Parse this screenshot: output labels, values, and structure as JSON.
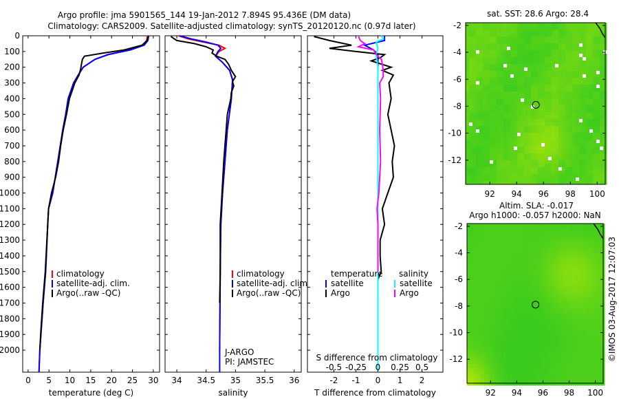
{
  "chart_data": {
    "type": "line",
    "title": "Argo profile: jma 5901565_144 19-Jan-2012 7.894S 95.436E (DM data)",
    "subtitle": "Climatology: CARS2009. Satellite-adjusted climatology: synTS_20120120.nc (0.97d later)",
    "depth_ticks": [
      "0",
      "100",
      "200",
      "300",
      "400",
      "500",
      "600",
      "700",
      "800",
      "900",
      "1000",
      "1100",
      "1200",
      "1300",
      "1400",
      "1500",
      "1600",
      "1700",
      "1800",
      "1900",
      "2000"
    ],
    "depth_range": [
      0,
      2140
    ],
    "panels": [
      {
        "id": "temperature",
        "xlabel": "temperature (deg C)",
        "xlim": [
          -1.3,
          31.5
        ],
        "xticks": [
          0,
          5,
          10,
          15,
          20,
          25,
          30
        ],
        "xtick_labels": [
          "0",
          "5",
          "10",
          "15",
          "20",
          "25",
          "30"
        ],
        "legend": [
          "climatology",
          "satellite-adj. clim.",
          "Argo(..raw -QC)"
        ],
        "legend_colors": [
          "#ff0000",
          "#0000ff",
          "#000000"
        ],
        "series": [
          {
            "name": "climatology",
            "color": "#ff0000",
            "depth": [
              0,
              30,
              60,
              90,
              120,
              150,
              200,
              250,
              300,
              400,
              500,
              600,
              700,
              800,
              1000,
              1100,
              1200,
              1500,
              1700,
              2000,
              2140
            ],
            "values": [
              28.6,
              28.4,
              27.5,
              24,
              19,
              16,
              13.2,
              12,
              10.9,
              9.6,
              9.0,
              8.3,
              7.7,
              7.1,
              5.9,
              4.9,
              4.7,
              4.2,
              3.6,
              2.8,
              2.6
            ]
          },
          {
            "name": "satellite-adj. clim.",
            "color": "#0000ff",
            "depth": [
              0,
              30,
              60,
              90,
              120,
              150,
              200,
              250,
              300,
              400,
              500,
              600,
              700,
              800,
              1000,
              1100,
              1200,
              1500,
              1700,
              2000,
              2140
            ],
            "values": [
              28.9,
              28.7,
              27.8,
              24.5,
              19.2,
              16,
              13.2,
              12,
              10.9,
              9.6,
              9.0,
              8.3,
              7.7,
              7.1,
              5.9,
              4.9,
              4.7,
              4.2,
              3.6,
              2.8,
              2.6
            ]
          },
          {
            "name": "Argo(..raw -QC)",
            "color": "#000000",
            "depth": [
              5,
              30,
              60,
              90,
              110,
              130,
              150,
              180,
              210,
              250,
              300,
              400,
              500,
              600,
              700,
              800,
              900,
              1000,
              1100,
              1200,
              1500,
              1700,
              1900,
              2000
            ],
            "values": [
              28.8,
              28.5,
              27.3,
              23,
              18,
              13.5,
              13.0,
              12.8,
              12.6,
              12.2,
              11.2,
              9.9,
              9.2,
              8.4,
              7.8,
              7.3,
              6.6,
              5.6,
              4.9,
              4.7,
              4.1,
              3.5,
              3.0,
              2.8
            ]
          }
        ]
      },
      {
        "id": "salinity",
        "xlabel": "salinity",
        "xlim": [
          33.8,
          36.12
        ],
        "xticks": [
          34,
          34.5,
          35,
          35.5,
          36
        ],
        "xtick_labels": [
          "34",
          "34.5",
          "35",
          "35.5",
          "36"
        ],
        "legend": [
          "climatology",
          "satellite-adj. clim.",
          "Argo(..raw -QC)"
        ],
        "legend_colors": [
          "#ff0000",
          "#0000ff",
          "#000000"
        ],
        "annotation": [
          "J-ARGO",
          "PI: JAMSTEC"
        ],
        "series": [
          {
            "name": "climatology",
            "color": "#ff0000",
            "depth": [
              0,
              20,
              40,
              60,
              80,
              100,
              130,
              170,
              220,
              280,
              400,
              600,
              800,
              1000,
              1200,
              1500,
              2000
            ],
            "values": [
              34.03,
              34.2,
              34.45,
              34.72,
              34.82,
              34.72,
              34.66,
              34.78,
              34.9,
              34.95,
              34.93,
              34.86,
              34.82,
              34.78,
              34.75,
              34.74,
              34.73
            ]
          },
          {
            "name": "satellite-adj. clim.",
            "color": "#0000ff",
            "depth": [
              0,
              20,
              40,
              60,
              80,
              100,
              130,
              170,
              220,
              280,
              400,
              600,
              800,
              1000,
              1200,
              1500,
              2000,
              2140
            ],
            "values": [
              34.05,
              34.25,
              34.5,
              34.7,
              34.75,
              34.7,
              34.66,
              34.78,
              34.9,
              34.95,
              34.93,
              34.86,
              34.82,
              34.78,
              34.75,
              34.74,
              34.73,
              34.73
            ]
          },
          {
            "name": "Argo(..raw -QC)",
            "color": "#000000",
            "depth": [
              5,
              30,
              50,
              70,
              90,
              110,
              130,
              150,
              180,
              220,
              260,
              290,
              320,
              360,
              400,
              500,
              600,
              800,
              1000,
              1200,
              1500,
              1700
            ],
            "values": [
              33.9,
              34.0,
              34.3,
              34.5,
              34.62,
              34.6,
              34.68,
              34.82,
              34.88,
              34.93,
              35.0,
              34.95,
              34.97,
              34.93,
              34.92,
              34.86,
              34.84,
              34.8,
              34.77,
              34.74,
              34.74,
              34.73
            ]
          }
        ]
      },
      {
        "id": "difference",
        "xlabel": "T difference from climatology",
        "xlabel_top": "S difference from climatology",
        "xlim": [
          -3.2,
          2.95
        ],
        "xticks": [
          -2,
          -1,
          0,
          1,
          2
        ],
        "xtick_labels": [
          "-2",
          "-1",
          "0",
          "1",
          "2"
        ],
        "s_xticks": [
          -0.5,
          -0.25,
          0,
          0.25,
          0.5
        ],
        "s_xtick_labels": [
          "-0.5",
          "-0.25",
          "0",
          "0.25",
          "0.5"
        ],
        "legend_temperature_title": "temperature",
        "legend_salinity_title": "salinity",
        "legend_temperature": [
          "satellite",
          "Argo"
        ],
        "legend_temperature_colors": [
          "#0000ff",
          "#000000"
        ],
        "legend_salinity": [
          "satellite",
          "Argo"
        ],
        "legend_salinity_colors": [
          "#00ffff",
          "#ff00ff"
        ],
        "series": [
          {
            "name": "T satellite",
            "color": "#0000ff",
            "depth": [
              0,
              30,
              60,
              90,
              120,
              200,
              400,
              1000,
              2000,
              2140
            ],
            "values": [
              0.3,
              0.3,
              -0.6,
              -0.2,
              0,
              0,
              0,
              0,
              0,
              0
            ]
          },
          {
            "name": "T Argo",
            "color": "#000000",
            "depth": [
              5,
              30,
              60,
              80,
              100,
              120,
              140,
              160,
              200,
              220,
              250,
              300,
              400,
              500,
              600,
              700,
              800,
              900,
              1000,
              1100,
              1200,
              1300,
              1400,
              1500,
              1550
            ],
            "values": [
              -2.9,
              -2.2,
              -1.2,
              -2.2,
              -1.0,
              0.3,
              0.1,
              -0.3,
              0.6,
              0.2,
              0.7,
              0.5,
              0.6,
              0.45,
              0.6,
              0.75,
              0.65,
              0.7,
              0.45,
              0.2,
              0.3,
              0.1,
              0.1,
              0.15,
              0.0
            ]
          },
          {
            "name": "S satellite",
            "color": "#00ffff",
            "depth": [
              0,
              20,
              40,
              80,
              120,
              200,
              500,
              1000,
              2000,
              2140
            ],
            "values": [
              0.04,
              0.06,
              -0.02,
              0.0,
              -0.02,
              0.0,
              0.0,
              0.0,
              0.0,
              0.0
            ]
          },
          {
            "name": "S Argo",
            "color": "#ff00ff",
            "depth": [
              5,
              30,
              50,
              70,
              90,
              110,
              130,
              150,
              180,
              220,
              260,
              300,
              400,
              600,
              800,
              1000,
              1100,
              1200,
              1500
            ],
            "values": [
              -0.22,
              -0.2,
              -0.15,
              -0.22,
              -0.05,
              -0.03,
              0.0,
              0.04,
              0.05,
              0.06,
              0.06,
              0.02,
              0.03,
              0.02,
              0.03,
              0.01,
              -0.01,
              0.0,
              0.0
            ]
          }
        ]
      }
    ],
    "maps": [
      {
        "id": "sst",
        "title_lines": [
          "sat. SST: 28.6 Argo: 28.4"
        ],
        "lon_range": [
          90.2,
          100.6
        ],
        "lat_range": [
          -13.8,
          -1.8
        ],
        "xtick_labels": [
          "92",
          "94",
          "96",
          "98",
          "100"
        ],
        "ytick_labels": [
          "-2",
          "-4",
          "-6",
          "-8",
          "-10",
          "-12"
        ],
        "profile_location": [
          95.436,
          -7.894
        ]
      },
      {
        "id": "sla",
        "title_lines": [
          "Altim. SLA: -0.017",
          "Argo h1000: -0.057 h2000: NaN"
        ],
        "lon_range": [
          90.2,
          100.6
        ],
        "lat_range": [
          -13.8,
          -1.8
        ],
        "xtick_labels": [
          "92",
          "94",
          "96",
          "98",
          "100"
        ],
        "ytick_labels": [
          "-2",
          "-4",
          "-6",
          "-8",
          "-10",
          "-12"
        ],
        "profile_location": [
          95.436,
          -7.894
        ]
      }
    ],
    "credit": "©IMOS 03-Aug-2017 12:07:03"
  }
}
